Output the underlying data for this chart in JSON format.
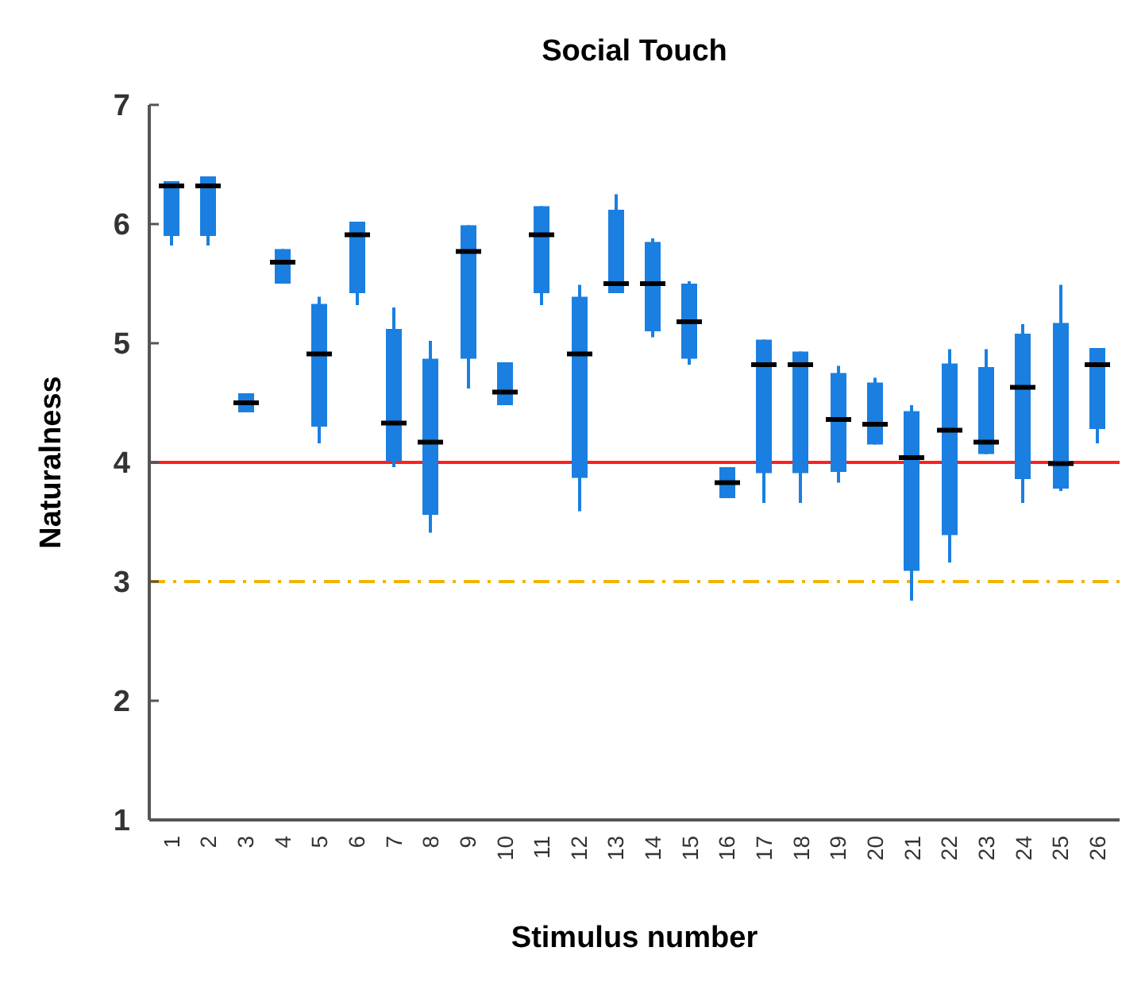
{
  "chart_data": {
    "type": "box",
    "title": "Social Touch",
    "xlabel": "Stimulus number",
    "ylabel": "Naturalness",
    "categories": [
      "1",
      "2",
      "3",
      "4",
      "5",
      "6",
      "7",
      "8",
      "9",
      "10",
      "11",
      "12",
      "13",
      "14",
      "15",
      "16",
      "17",
      "18",
      "19",
      "20",
      "21",
      "22",
      "23",
      "24",
      "25",
      "26"
    ],
    "color": "#1a7fe0",
    "boxes": [
      {
        "low": 5.82,
        "q1": 5.9,
        "median": 6.32,
        "q3": 6.36,
        "high": 6.36
      },
      {
        "low": 5.82,
        "q1": 5.9,
        "median": 6.32,
        "q3": 6.4,
        "high": 6.4
      },
      {
        "low": 4.42,
        "q1": 4.42,
        "median": 4.5,
        "q3": 4.58,
        "high": 4.58
      },
      {
        "low": 5.5,
        "q1": 5.5,
        "median": 5.68,
        "q3": 5.79,
        "high": 5.79
      },
      {
        "low": 4.16,
        "q1": 4.3,
        "median": 4.91,
        "q3": 5.33,
        "high": 5.39
      },
      {
        "low": 5.32,
        "q1": 5.42,
        "median": 5.91,
        "q3": 6.02,
        "high": 6.02
      },
      {
        "low": 3.96,
        "q1": 4.01,
        "median": 4.33,
        "q3": 5.12,
        "high": 5.3
      },
      {
        "low": 3.41,
        "q1": 3.56,
        "median": 4.17,
        "q3": 4.87,
        "high": 5.02
      },
      {
        "low": 4.62,
        "q1": 4.87,
        "median": 5.77,
        "q3": 5.99,
        "high": 5.99
      },
      {
        "low": 4.48,
        "q1": 4.48,
        "median": 4.59,
        "q3": 4.84,
        "high": 4.84
      },
      {
        "low": 5.32,
        "q1": 5.42,
        "median": 5.91,
        "q3": 6.15,
        "high": 6.15
      },
      {
        "low": 3.59,
        "q1": 3.87,
        "median": 4.91,
        "q3": 5.39,
        "high": 5.49
      },
      {
        "low": 5.42,
        "q1": 5.42,
        "median": 5.5,
        "q3": 6.12,
        "high": 6.25
      },
      {
        "low": 5.05,
        "q1": 5.1,
        "median": 5.5,
        "q3": 5.85,
        "high": 5.88
      },
      {
        "low": 4.82,
        "q1": 4.87,
        "median": 5.18,
        "q3": 5.5,
        "high": 5.52
      },
      {
        "low": 3.7,
        "q1": 3.7,
        "median": 3.83,
        "q3": 3.96,
        "high": 3.96
      },
      {
        "low": 3.66,
        "q1": 3.91,
        "median": 4.82,
        "q3": 5.03,
        "high": 5.03
      },
      {
        "low": 3.66,
        "q1": 3.91,
        "median": 4.82,
        "q3": 4.93,
        "high": 4.93
      },
      {
        "low": 3.83,
        "q1": 3.92,
        "median": 4.36,
        "q3": 4.75,
        "high": 4.81
      },
      {
        "low": 4.15,
        "q1": 4.15,
        "median": 4.32,
        "q3": 4.67,
        "high": 4.71
      },
      {
        "low": 2.84,
        "q1": 3.09,
        "median": 4.04,
        "q3": 4.43,
        "high": 4.48
      },
      {
        "low": 3.16,
        "q1": 3.39,
        "median": 4.27,
        "q3": 4.83,
        "high": 4.95
      },
      {
        "low": 4.07,
        "q1": 4.07,
        "median": 4.17,
        "q3": 4.8,
        "high": 4.95
      },
      {
        "low": 3.66,
        "q1": 3.86,
        "median": 4.63,
        "q3": 5.08,
        "high": 5.16
      },
      {
        "low": 3.76,
        "q1": 3.78,
        "median": 3.99,
        "q3": 5.17,
        "high": 5.49
      },
      {
        "low": 4.16,
        "q1": 4.28,
        "median": 4.82,
        "q3": 4.96,
        "high": 4.96
      }
    ],
    "ylim": [
      1,
      7
    ],
    "yticks": [
      1,
      2,
      3,
      4,
      5,
      6,
      7
    ],
    "grid": false,
    "ref_lines": [
      {
        "axis": "y",
        "value": 4,
        "color": "#ff2020",
        "line_style": "solid"
      },
      {
        "axis": "y",
        "value": 3,
        "color": "#f2b400",
        "line_style": "dashdot"
      }
    ]
  }
}
